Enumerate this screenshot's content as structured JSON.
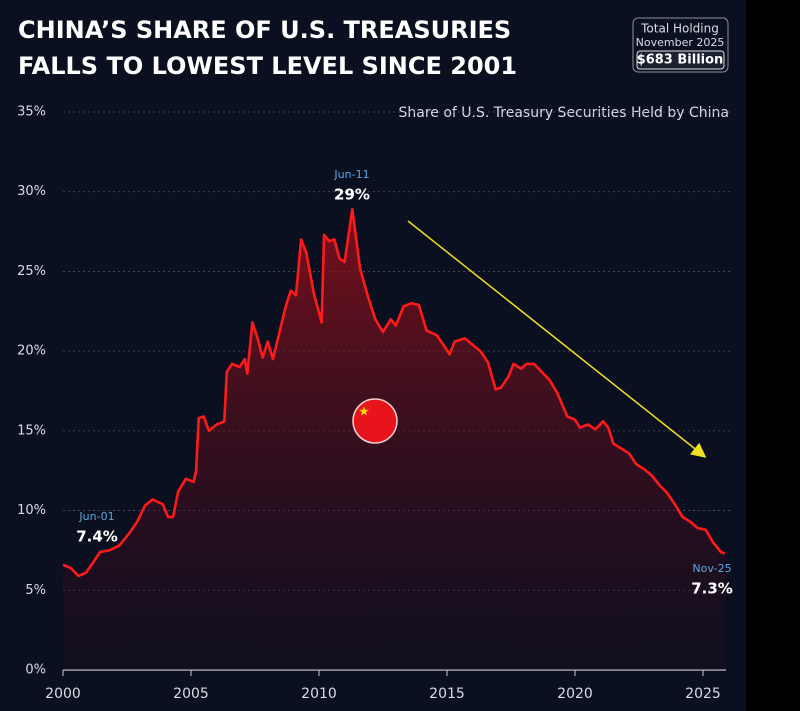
{
  "chart_data": {
    "type": "area",
    "title": [
      "CHINA’S SHARE OF U.S. TREASURIES",
      "FALLS TO LOWEST LEVEL SINCE 2001"
    ],
    "subtitle": "Share of U.S. Treasury Securities Held by China",
    "holding_box": {
      "label": "Total Holding",
      "date": "November 2025",
      "amount": "$683 Billion"
    },
    "annotations": [
      {
        "date": "Jun-01",
        "value": "7.4%"
      },
      {
        "date": "Jun-11",
        "value": "29%"
      },
      {
        "date": "Nov-25",
        "value": "7.3%"
      }
    ],
    "x": [
      2000.0,
      2000.3,
      2000.6,
      2000.9,
      2001.2,
      2001.45,
      2001.8,
      2002.2,
      2002.6,
      2002.9,
      2003.2,
      2003.5,
      2003.9,
      2004.1,
      2004.3,
      2004.5,
      2004.8,
      2005.1,
      2005.2,
      2005.3,
      2005.5,
      2005.7,
      2006.0,
      2006.3,
      2006.4,
      2006.6,
      2006.9,
      2007.1,
      2007.2,
      2007.4,
      2007.6,
      2007.8,
      2008.0,
      2008.2,
      2008.4,
      2008.7,
      2008.9,
      2009.1,
      2009.3,
      2009.5,
      2009.8,
      2010.1,
      2010.2,
      2010.4,
      2010.6,
      2010.8,
      2011.0,
      2011.3,
      2011.6,
      2011.9,
      2012.2,
      2012.5,
      2012.8,
      2013.0,
      2013.3,
      2013.6,
      2013.9,
      2014.2,
      2014.6,
      2014.9,
      2015.1,
      2015.3,
      2015.7,
      2016.0,
      2016.3,
      2016.6,
      2016.9,
      2017.1,
      2017.4,
      2017.6,
      2017.9,
      2018.1,
      2018.4,
      2018.7,
      2019.0,
      2019.3,
      2019.7,
      2020.0,
      2020.2,
      2020.5,
      2020.8,
      2021.1,
      2021.3,
      2021.5,
      2021.8,
      2022.1,
      2022.4,
      2022.7,
      2023.0,
      2023.3,
      2023.6,
      2023.9,
      2024.2,
      2024.5,
      2024.8,
      2025.1,
      2025.4,
      2025.7,
      2025.85
    ],
    "series": [
      {
        "name": "China share",
        "color": "#ff1a1a",
        "values": [
          6.6,
          6.4,
          5.9,
          6.1,
          6.8,
          7.4,
          7.5,
          7.8,
          8.6,
          9.3,
          10.3,
          10.7,
          10.4,
          9.6,
          9.6,
          11.2,
          12.0,
          11.8,
          12.5,
          15.8,
          15.9,
          15.0,
          15.4,
          15.6,
          18.7,
          19.2,
          19.0,
          19.5,
          18.6,
          21.8,
          20.8,
          19.6,
          20.6,
          19.5,
          20.8,
          22.8,
          23.8,
          23.5,
          27.0,
          26.2,
          23.6,
          21.8,
          27.3,
          26.9,
          27.0,
          25.8,
          25.6,
          28.9,
          25.2,
          23.5,
          22.0,
          21.2,
          22.0,
          21.6,
          22.8,
          23.0,
          22.9,
          21.3,
          21.0,
          20.3,
          19.8,
          20.6,
          20.8,
          20.4,
          20.0,
          19.3,
          17.6,
          17.7,
          18.4,
          19.2,
          18.9,
          19.2,
          19.2,
          18.7,
          18.2,
          17.4,
          15.9,
          15.7,
          15.2,
          15.4,
          15.1,
          15.6,
          15.2,
          14.2,
          13.9,
          13.6,
          12.9,
          12.6,
          12.2,
          11.6,
          11.1,
          10.4,
          9.6,
          9.3,
          8.9,
          8.8,
          8.0,
          7.4,
          7.3
        ]
      }
    ],
    "xlim": [
      2000,
      2025.9
    ],
    "xticks": [
      2000,
      2005,
      2010,
      2015,
      2020,
      2025
    ],
    "ylim": [
      0,
      35
    ],
    "yticks": [
      {
        "value": 0,
        "label": "0%"
      },
      {
        "value": 5,
        "label": "5%"
      },
      {
        "value": 10,
        "label": "10%"
      },
      {
        "value": 15,
        "label": "15%"
      },
      {
        "value": 20,
        "label": "20%"
      },
      {
        "value": 25,
        "label": "25%"
      },
      {
        "value": 30,
        "label": "30%"
      },
      {
        "value": 35,
        "label": "35%"
      }
    ],
    "grid": true
  }
}
